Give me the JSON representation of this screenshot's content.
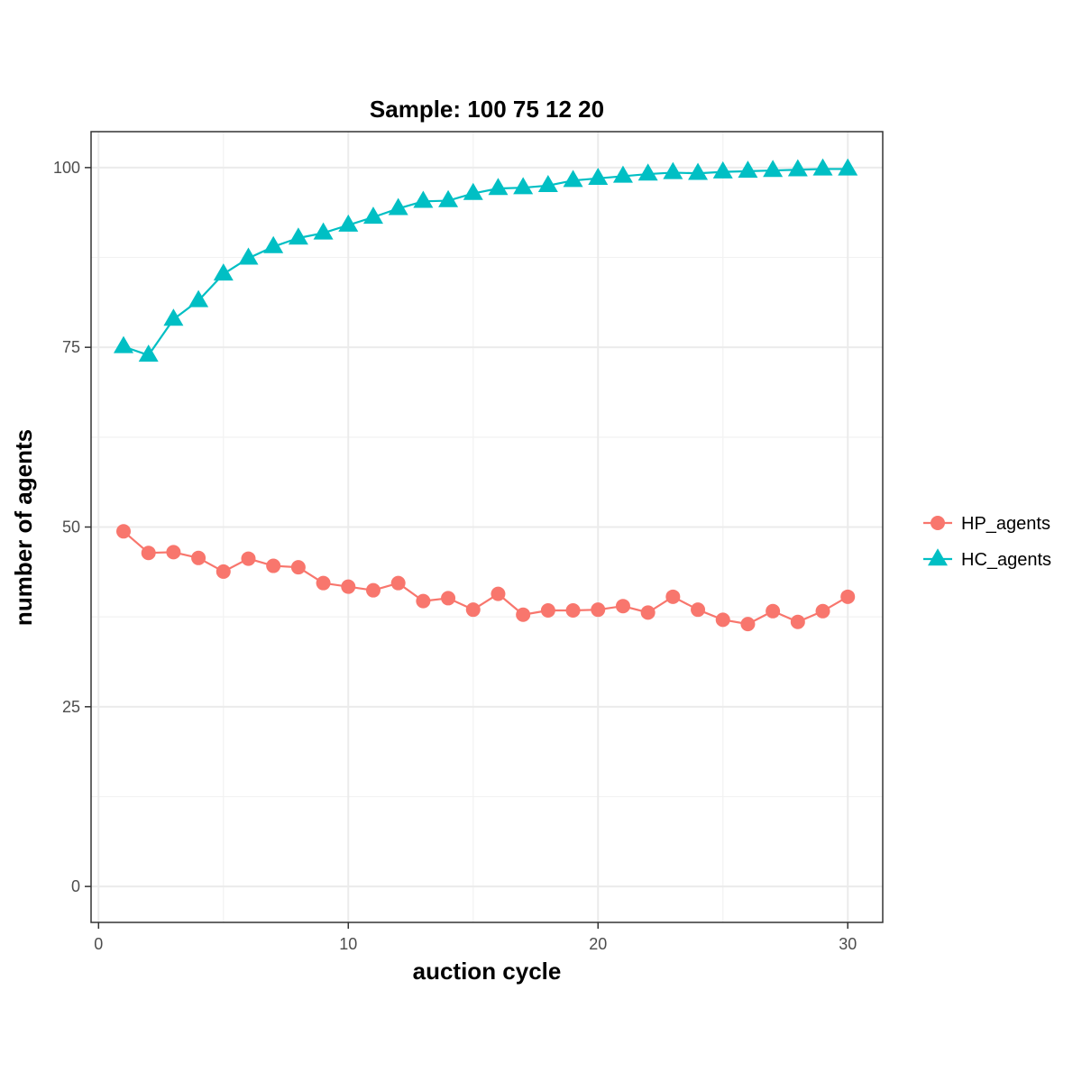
{
  "chart_data": {
    "type": "line",
    "title": "Sample: 100 75 12 20",
    "xlabel": "auction cycle",
    "ylabel": "number of agents",
    "xlim": [
      -0.3,
      31.4
    ],
    "ylim": [
      -5,
      105
    ],
    "xticks": [
      0,
      10,
      20,
      30
    ],
    "yticks": [
      0,
      25,
      50,
      75,
      100
    ],
    "xtick_labels": [
      "0",
      "10",
      "20",
      "30"
    ],
    "ytick_labels": [
      "0",
      "25",
      "50",
      "75",
      "100"
    ],
    "grid": true,
    "legend_position": "right",
    "x": [
      1,
      2,
      3,
      4,
      5,
      6,
      7,
      8,
      9,
      10,
      11,
      12,
      13,
      14,
      15,
      16,
      17,
      18,
      19,
      20,
      21,
      22,
      23,
      24,
      25,
      26,
      27,
      28,
      29,
      30
    ],
    "series": [
      {
        "name": "HP_agents",
        "color": "#F8766D",
        "marker": "circle",
        "values": [
          49.4,
          46.4,
          46.5,
          45.7,
          43.8,
          45.6,
          44.6,
          44.4,
          42.2,
          41.7,
          41.2,
          42.2,
          39.7,
          40.1,
          38.5,
          40.7,
          37.8,
          38.4,
          38.4,
          38.5,
          39.0,
          38.1,
          40.3,
          38.5,
          37.1,
          36.5,
          38.3,
          36.8,
          38.3,
          40.3
        ]
      },
      {
        "name": "HC_agents",
        "color": "#00BFC4",
        "marker": "triangle",
        "values": [
          75.1,
          73.9,
          78.9,
          81.5,
          85.2,
          87.4,
          89.0,
          90.2,
          90.9,
          92.0,
          93.1,
          94.3,
          95.3,
          95.4,
          96.4,
          97.1,
          97.2,
          97.5,
          98.2,
          98.5,
          98.8,
          99.1,
          99.3,
          99.2,
          99.4,
          99.5,
          99.6,
          99.7,
          99.8,
          99.8
        ]
      }
    ]
  }
}
